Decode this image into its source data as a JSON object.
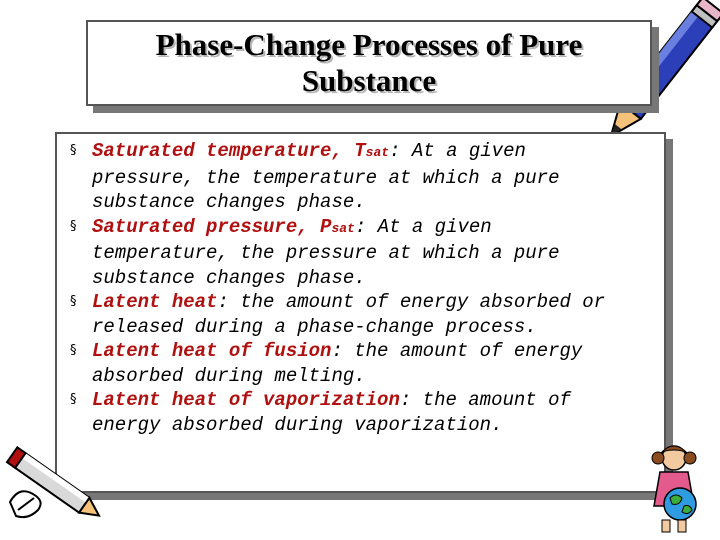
{
  "slide": {
    "title_line1": "Phase-Change Processes of Pure",
    "title_line2": "Substance",
    "bullets": [
      {
        "term": "Saturated temperature, T",
        "term_sub": "sat",
        "text_line1": ": At a given",
        "text_line2": "pressure, the temperature at which a pure",
        "text_line3": "substance changes phase."
      },
      {
        "term": "Saturated pressure, P",
        "term_sub": "sat",
        "text_line1": ": At a given",
        "text_line2": "temperature, the pressure at which a pure",
        "text_line3": "substance changes phase."
      },
      {
        "term": "Latent heat",
        "text_line1": ": the amount of energy absorbed or",
        "text_line2": "released during a phase-change process."
      },
      {
        "term": "Latent heat of fusion",
        "text_line1": ": the amount of energy",
        "text_line2": "absorbed during melting."
      },
      {
        "term": "Latent heat of vaporization",
        "text_line1": ": the amount of",
        "text_line2": "energy absorbed during vaporization."
      }
    ]
  },
  "decorations": {
    "top_right": "pencil-icon",
    "bottom_left": "pointing-pencil-icon",
    "bottom_right": "child-with-globe-icon",
    "term_color": "#b01010"
  }
}
